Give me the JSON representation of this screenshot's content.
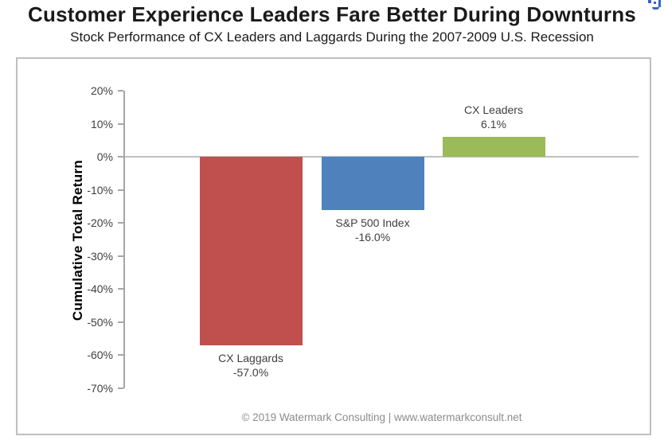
{
  "header": {
    "title": "Customer Experience Leaders Fare Better During Downturns",
    "subtitle": "Stock Performance of CX Leaders and Laggards During the 2007-2009 U.S. Recession"
  },
  "chart_data": {
    "type": "bar",
    "title": "Customer Experience Leaders Fare Better During Downturns",
    "subtitle": "Stock Performance of CX Leaders and Laggards During the 2007-2009 U.S. Recession",
    "categories": [
      "CX Laggards",
      "S&P 500 Index",
      "CX Leaders"
    ],
    "values": [
      -57.0,
      -16.0,
      6.1
    ],
    "value_labels": [
      "-57.0%",
      "-16.0%",
      "6.1%"
    ],
    "bar_colors": [
      "#C0504D",
      "#4F81BD",
      "#9BBB59"
    ],
    "xlabel": "",
    "ylabel": "Cumulative Total Return",
    "ylim": [
      -70,
      20
    ],
    "ytick_step": 10,
    "ytick_labels": [
      "20%",
      "10%",
      "0%",
      "-10%",
      "-20%",
      "-30%",
      "-40%",
      "-50%",
      "-60%",
      "-70%"
    ],
    "grid": false,
    "legend": "none"
  },
  "footer": {
    "text": "© 2019 Watermark Consulting | www.watermarkconsult.net"
  },
  "colors": {
    "axis": "#a6a6a6",
    "zero_line": "#c0c0c0",
    "frame_border": "#bfbfbf",
    "label_text": "#3f3f3f",
    "footer_text": "#8c8c8c",
    "title_text": "#1a1a1a",
    "corner_icon_blue": "#3465c8"
  }
}
